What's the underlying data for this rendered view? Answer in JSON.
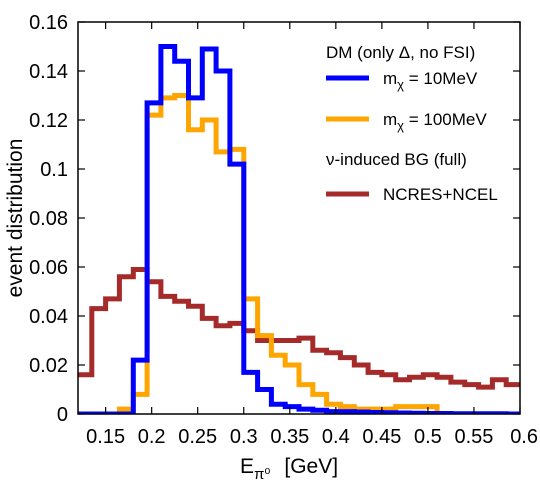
{
  "chart_data": {
    "type": "line",
    "style": "step-histogram",
    "xlabel_main": "E",
    "xlabel_sub": "π⁰",
    "xlabel_unit": "[GeV]",
    "ylabel": "event distribution",
    "xlim": [
      0.12,
      0.6
    ],
    "ylim": [
      0,
      0.16
    ],
    "x_ticks": [
      "0.15",
      "0.2",
      "0.25",
      "0.3",
      "0.35",
      "0.4",
      "0.45",
      "0.5",
      "0.55",
      "0.6"
    ],
    "y_ticks": [
      "0",
      "0.02",
      "0.04",
      "0.06",
      "0.08",
      "0.1",
      "0.12",
      "0.14",
      "0.16"
    ],
    "grid": false,
    "legend_position": "top-right",
    "legend": {
      "group1_title": "DM (only Δ, no FSI)",
      "group2_title": "ν-induced BG (full)"
    },
    "bin_edges": [
      0.12,
      0.135,
      0.15,
      0.165,
      0.18,
      0.195,
      0.21,
      0.225,
      0.24,
      0.255,
      0.27,
      0.285,
      0.3,
      0.315,
      0.33,
      0.345,
      0.36,
      0.375,
      0.39,
      0.405,
      0.42,
      0.435,
      0.45,
      0.465,
      0.48,
      0.495,
      0.51,
      0.525,
      0.54,
      0.555,
      0.57,
      0.585,
      0.6
    ],
    "series": [
      {
        "label_main": "m",
        "label_sub": "χ",
        "label_rest": " = 10MeV",
        "color": "#0000ff",
        "values": [
          0.0,
          0.0,
          0.0,
          0.0,
          0.022,
          0.127,
          0.15,
          0.144,
          0.129,
          0.149,
          0.14,
          0.102,
          0.017,
          0.01,
          0.004,
          0.003,
          0.002,
          0.0015,
          0.001,
          0.001,
          0.0008,
          0.0006,
          0.0005,
          0.0004,
          0.0003,
          0.0002,
          0.0002,
          0.0001,
          0.0001,
          0.0001,
          0.0001,
          0.0
        ]
      },
      {
        "label_main": "m",
        "label_sub": "χ",
        "label_rest": " = 100MeV",
        "color": "#ffa500",
        "values": [
          0.0,
          0.0,
          0.0,
          0.002,
          0.008,
          0.122,
          0.129,
          0.13,
          0.116,
          0.12,
          0.107,
          0.108,
          0.047,
          0.032,
          0.024,
          0.02,
          0.012,
          0.008,
          0.004,
          0.003,
          0.002,
          0.002,
          0.002,
          0.003,
          0.003,
          0.003,
          0.0,
          0.0,
          0.0,
          0.0,
          0.0,
          0.0
        ]
      },
      {
        "label_main": "NCRES+NCEL",
        "label_sub": "",
        "label_rest": "",
        "color": "#a52a2a",
        "values": [
          0.016,
          0.043,
          0.047,
          0.056,
          0.059,
          0.054,
          0.048,
          0.046,
          0.044,
          0.039,
          0.036,
          0.037,
          0.034,
          0.03,
          0.03,
          0.03,
          0.031,
          0.026,
          0.025,
          0.023,
          0.02,
          0.017,
          0.016,
          0.014,
          0.015,
          0.016,
          0.015,
          0.013,
          0.012,
          0.011,
          0.014,
          0.012
        ]
      }
    ]
  }
}
